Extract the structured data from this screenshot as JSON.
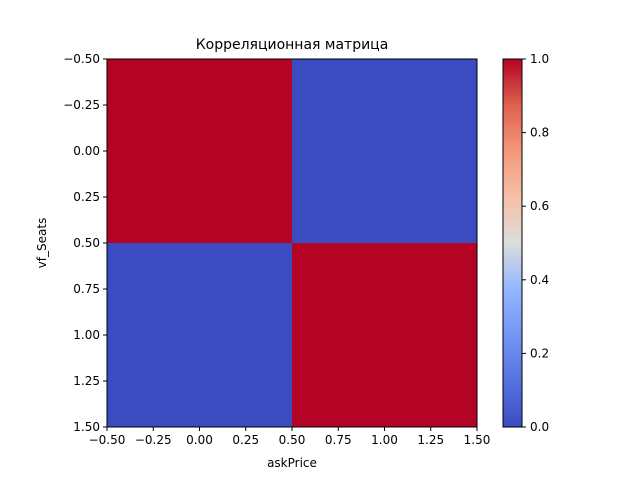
{
  "chart_data": {
    "type": "heatmap",
    "title": "Корреляционная матрица",
    "xlabel": "askPrice",
    "ylabel": "vf_Seats",
    "xlim": [
      -0.5,
      1.5
    ],
    "ylim": [
      1.5,
      -0.5
    ],
    "x_ticks": [
      -0.5,
      -0.25,
      0.0,
      0.25,
      0.5,
      0.75,
      1.0,
      1.25,
      1.5
    ],
    "x_tick_labels": [
      "−0.50",
      "−0.25",
      "0.00",
      "0.25",
      "0.50",
      "0.75",
      "1.00",
      "1.25",
      "1.50"
    ],
    "y_ticks": [
      -0.5,
      -0.25,
      0.0,
      0.25,
      0.5,
      0.75,
      1.0,
      1.25,
      1.5
    ],
    "y_tick_labels": [
      "−0.50",
      "−0.25",
      "0.00",
      "0.25",
      "0.50",
      "0.75",
      "1.00",
      "1.25",
      "1.50"
    ],
    "matrix": [
      [
        1.0,
        0.0
      ],
      [
        0.0,
        1.0
      ]
    ],
    "colormap": "coolwarm",
    "colorbar": {
      "min": 0.0,
      "max": 1.0,
      "ticks": [
        0.0,
        0.2,
        0.4,
        0.6,
        0.8,
        1.0
      ],
      "tick_labels": [
        "0.0",
        "0.2",
        "0.4",
        "0.6",
        "0.8",
        "1.0"
      ]
    },
    "grid": false,
    "colors": {
      "high": "#b40426",
      "low": "#3b4cc0"
    }
  }
}
